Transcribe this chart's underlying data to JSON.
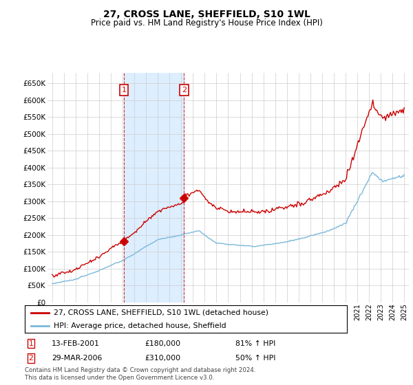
{
  "title": "27, CROSS LANE, SHEFFIELD, S10 1WL",
  "subtitle": "Price paid vs. HM Land Registry's House Price Index (HPI)",
  "legend_line1": "27, CROSS LANE, SHEFFIELD, S10 1WL (detached house)",
  "legend_line2": "HPI: Average price, detached house, Sheffield",
  "transaction1_date": "13-FEB-2001",
  "transaction1_price": "£180,000",
  "transaction1_hpi": "81% ↑ HPI",
  "transaction2_date": "29-MAR-2006",
  "transaction2_price": "£310,000",
  "transaction2_hpi": "50% ↑ HPI",
  "footnote1": "Contains HM Land Registry data © Crown copyright and database right 2024.",
  "footnote2": "This data is licensed under the Open Government Licence v3.0.",
  "hpi_color": "#7ab8d9",
  "price_color": "#cc0000",
  "shade_color": "#ddeeff",
  "background_color": "#ffffff",
  "grid_color": "#cccccc",
  "ylim": [
    0,
    680000
  ],
  "yticks": [
    0,
    50000,
    100000,
    150000,
    200000,
    250000,
    300000,
    350000,
    400000,
    450000,
    500000,
    550000,
    600000,
    650000
  ],
  "t1": 2001.12,
  "t2": 2006.24,
  "price1": 180000,
  "price2": 310000,
  "xlim_left": 1994.6,
  "xlim_right": 2025.4
}
